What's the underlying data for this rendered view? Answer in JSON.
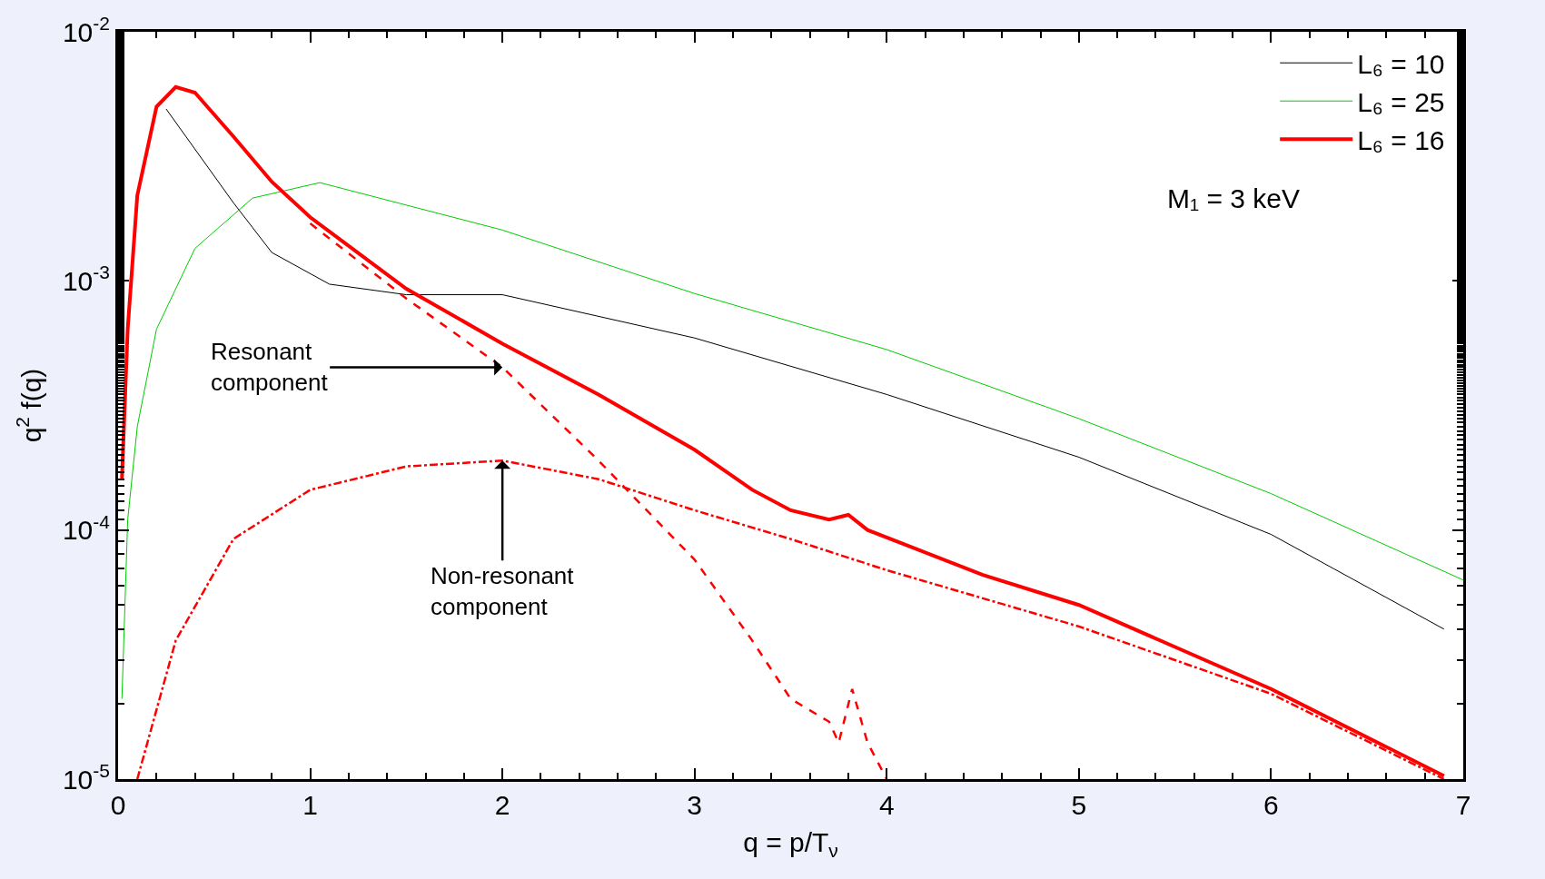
{
  "chart_data": {
    "type": "line",
    "xlabel": "q = p/T$_{ν}$",
    "ylabel": "q$^{2}$ f(q)",
    "xlim": [
      0,
      7
    ],
    "xticks": [
      0,
      1,
      2,
      3,
      4,
      5,
      6,
      7
    ],
    "ylim": [
      1e-05,
      0.01
    ],
    "yticks": [
      {
        "value": 0.01,
        "label": "10$^{-2}$"
      },
      {
        "value": 0.001,
        "label": "10$^{-3}$"
      },
      {
        "value": 0.0001,
        "label": "10$^{-4}$"
      },
      {
        "value": 1e-05,
        "label": "10$^{-5}$"
      }
    ],
    "log": "y",
    "legend": "top right",
    "marker": "none",
    "series": [
      {
        "name": "L₆ = 10",
        "color": "#000000",
        "line_style": "solid",
        "x": [
          0.25,
          0.6,
          0.8,
          1.1,
          1.5,
          2.0,
          3.0,
          4.0,
          5.0,
          6.0,
          6.9
        ],
        "values": [
          0.0049,
          0.00206,
          0.0013,
          0.00097,
          0.00088,
          0.00088,
          0.00059,
          0.00035,
          0.000196,
          9.6e-05,
          4e-05
        ]
      },
      {
        "name": "L₆ = 25",
        "color": "#00cc00",
        "line_style": "solid",
        "x": [
          0.02,
          0.05,
          0.1,
          0.2,
          0.4,
          0.7,
          1.05,
          2.0,
          3.0,
          4.0,
          5.0,
          6.0,
          7.0
        ],
        "values": [
          2.1e-05,
          0.00011,
          0.00026,
          0.00064,
          0.00135,
          0.00215,
          0.00248,
          0.0016,
          0.00089,
          0.00053,
          0.00028,
          0.00014,
          6.3e-05
        ]
      },
      {
        "name": "L₆ = 16",
        "color": "#ff0000",
        "line_style": "solid",
        "x": [
          0.02,
          0.05,
          0.1,
          0.2,
          0.3,
          0.4,
          0.6,
          0.8,
          1.0,
          1.5,
          2.0,
          2.5,
          3.0,
          3.3,
          3.5,
          3.7,
          3.8,
          3.9,
          4.5,
          5.0,
          6.0,
          6.9
        ],
        "values": [
          0.00016,
          0.00064,
          0.0022,
          0.005,
          0.006,
          0.0057,
          0.0038,
          0.0025,
          0.0018,
          0.00093,
          0.00056,
          0.00035,
          0.00021,
          0.000145,
          0.00012,
          0.00011,
          0.000115,
          0.0001,
          6.6e-05,
          5e-05,
          2.3e-05,
          1.03e-05
        ]
      },
      {
        "color": "#ff0000",
        "line_style": "dashed",
        "x": [
          1.0,
          1.5,
          2.0,
          2.5,
          3.0,
          3.3,
          3.5,
          3.7,
          3.75,
          3.82,
          3.9,
          4.0
        ],
        "values": [
          0.0017,
          0.00085,
          0.00045,
          0.00019,
          7.6e-05,
          3.6e-05,
          2.1e-05,
          1.7e-05,
          1.4e-05,
          2.3e-05,
          1.4e-05,
          1e-05
        ]
      },
      {
        "color": "#ff0000",
        "line_style": "dashdot",
        "x": [
          0.1,
          0.3,
          0.6,
          1.0,
          1.5,
          2.0,
          2.5,
          3.0,
          3.5,
          4.0,
          5.0,
          6.0,
          6.9
        ],
        "values": [
          1e-05,
          3.6e-05,
          9.2e-05,
          0.000145,
          0.00018,
          0.00019,
          0.00016,
          0.00012,
          9.2e-05,
          6.9e-05,
          4.1e-05,
          2.2e-05,
          1e-05
        ]
      }
    ],
    "annotations": [
      "M₁ = 3 keV",
      {
        "text": "Resonant\ncomponent",
        "x": 2.0,
        "y": 0.00045
      },
      {
        "text": "Non-resonant\ncomponent",
        "x": 2.0,
        "y": 0.00019
      }
    ]
  }
}
